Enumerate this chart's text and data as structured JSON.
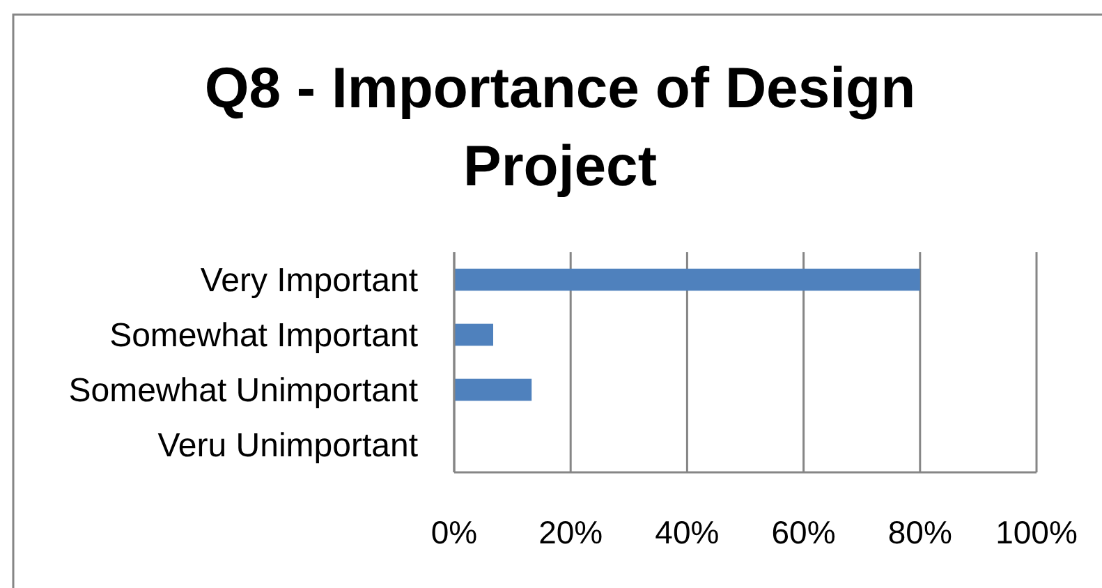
{
  "chart_data": {
    "type": "bar",
    "orientation": "horizontal",
    "title": "Q8 - Importance of Design Project",
    "categories": [
      "Very Important",
      "Somewhat Important",
      "Somewhat Unimportant",
      "Veru Unimportant"
    ],
    "values": [
      80,
      6.7,
      13.3,
      0
    ],
    "color": "#4f81bd",
    "xlim": [
      0,
      100
    ],
    "xticks": [
      {
        "value": 0,
        "label": "0%"
      },
      {
        "value": 20,
        "label": "20%"
      },
      {
        "value": 40,
        "label": "40%"
      },
      {
        "value": 60,
        "label": "60%"
      },
      {
        "value": 80,
        "label": "80%"
      },
      {
        "value": 100,
        "label": "100%"
      }
    ],
    "grid": "x"
  }
}
